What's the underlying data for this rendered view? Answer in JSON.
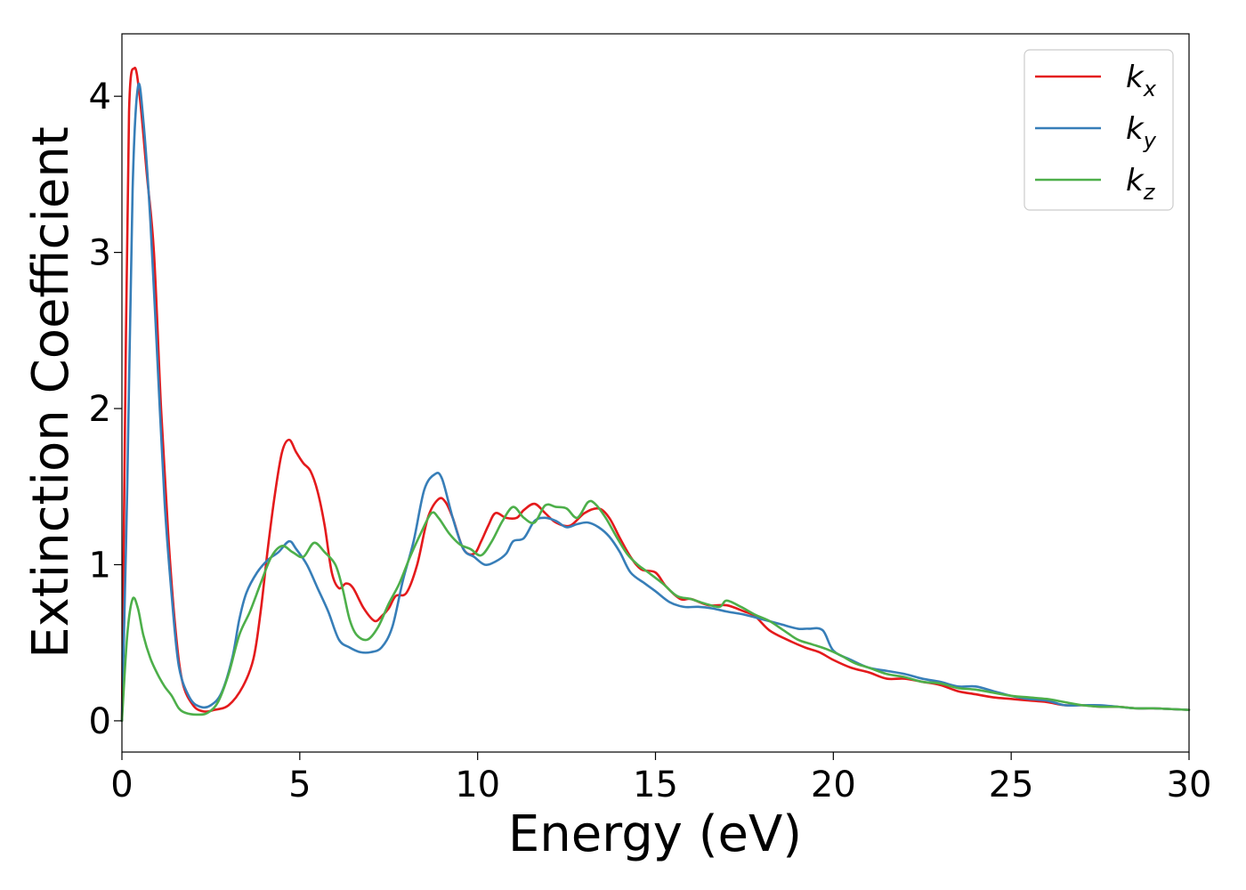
{
  "chart_data": {
    "type": "line",
    "xlabel": "Energy (eV)",
    "ylabel": "Extinction Coefficient",
    "xlim": [
      0,
      30
    ],
    "ylim": [
      -0.2,
      4.4
    ],
    "x_ticks": [
      "0",
      "5",
      "10",
      "15",
      "20",
      "25",
      "30"
    ],
    "y_ticks": [
      "0",
      "1",
      "2",
      "3",
      "4"
    ],
    "grid": false,
    "legend_position": "top-right",
    "series": [
      {
        "name": "k",
        "subscript": "x",
        "color": "#e41a1c",
        "points": [
          [
            0,
            0
          ],
          [
            0.1,
            2.2
          ],
          [
            0.2,
            3.9
          ],
          [
            0.35,
            4.18
          ],
          [
            0.5,
            4.0
          ],
          [
            0.7,
            3.5
          ],
          [
            0.9,
            3.0
          ],
          [
            1.1,
            2.0
          ],
          [
            1.3,
            1.2
          ],
          [
            1.5,
            0.6
          ],
          [
            1.7,
            0.25
          ],
          [
            2.0,
            0.1
          ],
          [
            2.3,
            0.06
          ],
          [
            2.6,
            0.07
          ],
          [
            3.0,
            0.1
          ],
          [
            3.4,
            0.22
          ],
          [
            3.7,
            0.4
          ],
          [
            3.9,
            0.7
          ],
          [
            4.1,
            1.1
          ],
          [
            4.3,
            1.45
          ],
          [
            4.5,
            1.72
          ],
          [
            4.7,
            1.8
          ],
          [
            4.9,
            1.72
          ],
          [
            5.1,
            1.65
          ],
          [
            5.3,
            1.6
          ],
          [
            5.5,
            1.47
          ],
          [
            5.7,
            1.25
          ],
          [
            5.9,
            0.95
          ],
          [
            6.1,
            0.85
          ],
          [
            6.3,
            0.88
          ],
          [
            6.5,
            0.85
          ],
          [
            6.8,
            0.72
          ],
          [
            7.1,
            0.64
          ],
          [
            7.3,
            0.67
          ],
          [
            7.5,
            0.72
          ],
          [
            7.7,
            0.8
          ],
          [
            8.0,
            0.82
          ],
          [
            8.3,
            1.0
          ],
          [
            8.6,
            1.3
          ],
          [
            8.9,
            1.42
          ],
          [
            9.1,
            1.4
          ],
          [
            9.3,
            1.3
          ],
          [
            9.6,
            1.1
          ],
          [
            9.9,
            1.07
          ],
          [
            10.1,
            1.15
          ],
          [
            10.3,
            1.25
          ],
          [
            10.5,
            1.33
          ],
          [
            10.8,
            1.3
          ],
          [
            11.1,
            1.3
          ],
          [
            11.3,
            1.35
          ],
          [
            11.6,
            1.39
          ],
          [
            11.9,
            1.33
          ],
          [
            12.2,
            1.27
          ],
          [
            12.6,
            1.25
          ],
          [
            13.0,
            1.33
          ],
          [
            13.4,
            1.36
          ],
          [
            13.7,
            1.3
          ],
          [
            14.0,
            1.17
          ],
          [
            14.3,
            1.05
          ],
          [
            14.6,
            0.97
          ],
          [
            15.0,
            0.95
          ],
          [
            15.3,
            0.86
          ],
          [
            15.7,
            0.78
          ],
          [
            16.0,
            0.78
          ],
          [
            16.5,
            0.74
          ],
          [
            17.0,
            0.74
          ],
          [
            17.5,
            0.7
          ],
          [
            17.8,
            0.67
          ],
          [
            18.2,
            0.58
          ],
          [
            18.7,
            0.52
          ],
          [
            19.2,
            0.47
          ],
          [
            19.6,
            0.44
          ],
          [
            20.0,
            0.39
          ],
          [
            20.5,
            0.34
          ],
          [
            21.0,
            0.31
          ],
          [
            21.5,
            0.27
          ],
          [
            22.0,
            0.27
          ],
          [
            22.5,
            0.25
          ],
          [
            23.0,
            0.23
          ],
          [
            23.5,
            0.19
          ],
          [
            24.0,
            0.17
          ],
          [
            24.5,
            0.15
          ],
          [
            25.0,
            0.14
          ],
          [
            25.5,
            0.13
          ],
          [
            26.0,
            0.12
          ],
          [
            26.5,
            0.1
          ],
          [
            27.0,
            0.1
          ],
          [
            27.5,
            0.09
          ],
          [
            28.0,
            0.09
          ],
          [
            28.5,
            0.08
          ],
          [
            29.0,
            0.08
          ],
          [
            30.0,
            0.07
          ]
        ]
      },
      {
        "name": "k",
        "subscript": "y",
        "color": "#377eb8",
        "points": [
          [
            0,
            0
          ],
          [
            0.15,
            1.5
          ],
          [
            0.3,
            3.4
          ],
          [
            0.45,
            4.06
          ],
          [
            0.6,
            3.85
          ],
          [
            0.8,
            3.2
          ],
          [
            1.0,
            2.3
          ],
          [
            1.2,
            1.4
          ],
          [
            1.4,
            0.8
          ],
          [
            1.6,
            0.35
          ],
          [
            1.9,
            0.15
          ],
          [
            2.2,
            0.09
          ],
          [
            2.5,
            0.1
          ],
          [
            2.8,
            0.18
          ],
          [
            3.1,
            0.4
          ],
          [
            3.3,
            0.65
          ],
          [
            3.5,
            0.82
          ],
          [
            3.8,
            0.95
          ],
          [
            4.1,
            1.03
          ],
          [
            4.4,
            1.08
          ],
          [
            4.7,
            1.15
          ],
          [
            4.9,
            1.1
          ],
          [
            5.2,
            1.0
          ],
          [
            5.5,
            0.85
          ],
          [
            5.8,
            0.7
          ],
          [
            6.1,
            0.52
          ],
          [
            6.4,
            0.47
          ],
          [
            6.7,
            0.44
          ],
          [
            7.0,
            0.44
          ],
          [
            7.3,
            0.47
          ],
          [
            7.6,
            0.6
          ],
          [
            7.9,
            0.9
          ],
          [
            8.2,
            1.15
          ],
          [
            8.5,
            1.48
          ],
          [
            8.8,
            1.58
          ],
          [
            9.0,
            1.55
          ],
          [
            9.3,
            1.3
          ],
          [
            9.6,
            1.1
          ],
          [
            9.9,
            1.05
          ],
          [
            10.2,
            1.0
          ],
          [
            10.5,
            1.02
          ],
          [
            10.8,
            1.07
          ],
          [
            11.0,
            1.15
          ],
          [
            11.3,
            1.17
          ],
          [
            11.6,
            1.28
          ],
          [
            11.9,
            1.3
          ],
          [
            12.2,
            1.28
          ],
          [
            12.5,
            1.24
          ],
          [
            12.8,
            1.26
          ],
          [
            13.1,
            1.27
          ],
          [
            13.4,
            1.24
          ],
          [
            13.7,
            1.18
          ],
          [
            14.0,
            1.08
          ],
          [
            14.3,
            0.95
          ],
          [
            14.7,
            0.88
          ],
          [
            15.0,
            0.83
          ],
          [
            15.4,
            0.76
          ],
          [
            15.8,
            0.73
          ],
          [
            16.2,
            0.73
          ],
          [
            16.6,
            0.72
          ],
          [
            17.0,
            0.7
          ],
          [
            17.5,
            0.68
          ],
          [
            18.0,
            0.65
          ],
          [
            18.5,
            0.62
          ],
          [
            19.0,
            0.59
          ],
          [
            19.3,
            0.59
          ],
          [
            19.7,
            0.58
          ],
          [
            20.0,
            0.45
          ],
          [
            20.5,
            0.39
          ],
          [
            21.0,
            0.34
          ],
          [
            21.5,
            0.32
          ],
          [
            22.0,
            0.3
          ],
          [
            22.5,
            0.27
          ],
          [
            23.0,
            0.25
          ],
          [
            23.5,
            0.22
          ],
          [
            24.0,
            0.22
          ],
          [
            24.5,
            0.19
          ],
          [
            25.0,
            0.16
          ],
          [
            25.5,
            0.14
          ],
          [
            26.0,
            0.13
          ],
          [
            26.5,
            0.1
          ],
          [
            27.0,
            0.1
          ],
          [
            27.5,
            0.1
          ],
          [
            28.0,
            0.09
          ],
          [
            28.5,
            0.08
          ],
          [
            29.0,
            0.08
          ],
          [
            30.0,
            0.07
          ]
        ]
      },
      {
        "name": "k",
        "subscript": "z",
        "color": "#4daf4a",
        "points": [
          [
            0,
            0
          ],
          [
            0.15,
            0.55
          ],
          [
            0.3,
            0.78
          ],
          [
            0.45,
            0.72
          ],
          [
            0.6,
            0.55
          ],
          [
            0.8,
            0.4
          ],
          [
            1.0,
            0.3
          ],
          [
            1.2,
            0.22
          ],
          [
            1.4,
            0.16
          ],
          [
            1.6,
            0.08
          ],
          [
            1.8,
            0.05
          ],
          [
            2.1,
            0.04
          ],
          [
            2.4,
            0.05
          ],
          [
            2.7,
            0.12
          ],
          [
            3.0,
            0.3
          ],
          [
            3.3,
            0.55
          ],
          [
            3.6,
            0.7
          ],
          [
            3.9,
            0.88
          ],
          [
            4.2,
            1.05
          ],
          [
            4.5,
            1.12
          ],
          [
            4.8,
            1.08
          ],
          [
            5.1,
            1.05
          ],
          [
            5.4,
            1.14
          ],
          [
            5.7,
            1.08
          ],
          [
            6.0,
            1.0
          ],
          [
            6.2,
            0.85
          ],
          [
            6.4,
            0.65
          ],
          [
            6.6,
            0.55
          ],
          [
            6.9,
            0.52
          ],
          [
            7.2,
            0.6
          ],
          [
            7.5,
            0.75
          ],
          [
            7.8,
            0.88
          ],
          [
            8.1,
            1.05
          ],
          [
            8.4,
            1.2
          ],
          [
            8.7,
            1.33
          ],
          [
            8.9,
            1.3
          ],
          [
            9.2,
            1.2
          ],
          [
            9.5,
            1.13
          ],
          [
            9.8,
            1.1
          ],
          [
            10.1,
            1.06
          ],
          [
            10.4,
            1.15
          ],
          [
            10.7,
            1.28
          ],
          [
            11.0,
            1.37
          ],
          [
            11.3,
            1.3
          ],
          [
            11.6,
            1.27
          ],
          [
            11.9,
            1.38
          ],
          [
            12.2,
            1.37
          ],
          [
            12.5,
            1.36
          ],
          [
            12.8,
            1.3
          ],
          [
            13.1,
            1.4
          ],
          [
            13.3,
            1.39
          ],
          [
            13.6,
            1.3
          ],
          [
            13.9,
            1.18
          ],
          [
            14.2,
            1.07
          ],
          [
            14.5,
            1.0
          ],
          [
            14.8,
            0.95
          ],
          [
            15.2,
            0.88
          ],
          [
            15.6,
            0.8
          ],
          [
            16.0,
            0.78
          ],
          [
            16.4,
            0.75
          ],
          [
            16.8,
            0.73
          ],
          [
            17.0,
            0.77
          ],
          [
            17.4,
            0.73
          ],
          [
            17.8,
            0.68
          ],
          [
            18.2,
            0.64
          ],
          [
            18.6,
            0.58
          ],
          [
            19.0,
            0.52
          ],
          [
            19.4,
            0.49
          ],
          [
            19.8,
            0.46
          ],
          [
            20.2,
            0.42
          ],
          [
            20.6,
            0.37
          ],
          [
            21.0,
            0.34
          ],
          [
            21.5,
            0.3
          ],
          [
            22.0,
            0.28
          ],
          [
            22.5,
            0.25
          ],
          [
            23.0,
            0.24
          ],
          [
            23.5,
            0.21
          ],
          [
            24.0,
            0.2
          ],
          [
            24.5,
            0.18
          ],
          [
            25.0,
            0.16
          ],
          [
            25.5,
            0.15
          ],
          [
            26.0,
            0.14
          ],
          [
            26.5,
            0.12
          ],
          [
            27.0,
            0.1
          ],
          [
            27.5,
            0.09
          ],
          [
            28.0,
            0.09
          ],
          [
            28.5,
            0.08
          ],
          [
            29.0,
            0.08
          ],
          [
            30.0,
            0.07
          ]
        ]
      }
    ]
  }
}
